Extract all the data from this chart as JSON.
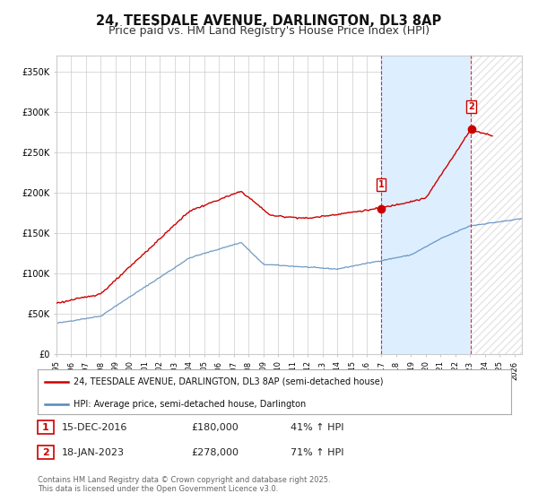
{
  "title": "24, TEESDALE AVENUE, DARLINGTON, DL3 8AP",
  "subtitle": "Price paid vs. HM Land Registry's House Price Index (HPI)",
  "red_label": "24, TEESDALE AVENUE, DARLINGTON, DL3 8AP (semi-detached house)",
  "blue_label": "HPI: Average price, semi-detached house, Darlington",
  "transaction1_date": "15-DEC-2016",
  "transaction1_price": 180000,
  "transaction1_hpi": "41% ↑ HPI",
  "transaction2_date": "18-JAN-2023",
  "transaction2_price": 278000,
  "transaction2_hpi": "71% ↑ HPI",
  "red_color": "#cc0000",
  "blue_color": "#5588bb",
  "vline_color": "#cc0000",
  "background_color": "#ffffff",
  "grid_color": "#cccccc",
  "shade_color": "#ddeeff",
  "hatch_color": "#cccccc",
  "ylim": [
    0,
    370000
  ],
  "footnote": "Contains HM Land Registry data © Crown copyright and database right 2025.\nThis data is licensed under the Open Government Licence v3.0.",
  "title_fontsize": 10.5,
  "subtitle_fontsize": 9,
  "axis_fontsize": 7.5,
  "legend_fontsize": 7.5,
  "t1_year": 2016.958,
  "t2_year": 2023.042,
  "xlim_start": 1995,
  "xlim_end": 2026.5
}
